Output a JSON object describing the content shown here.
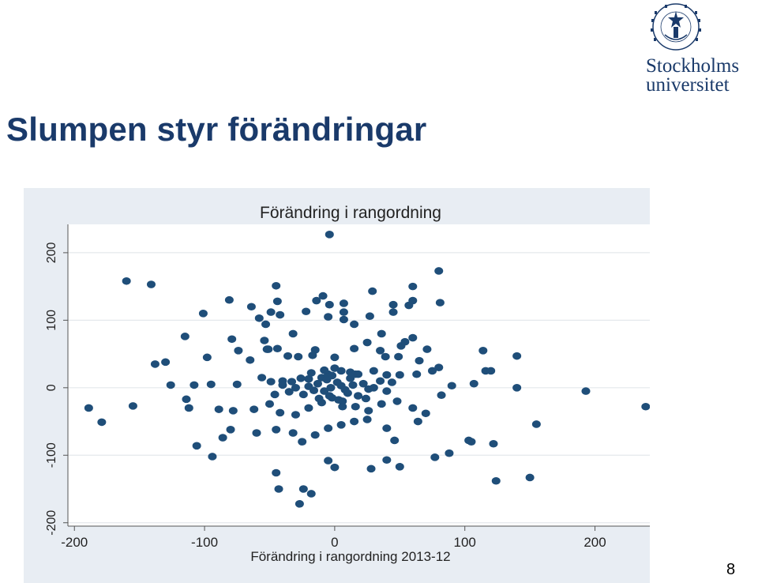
{
  "slide": {
    "title": "Slumpen styr förändringar",
    "page_number": "8"
  },
  "logo": {
    "line1": "Stockholms",
    "line2": "universitet",
    "seal_text": "UNIVERSITET STOCKHOLMS"
  },
  "colors": {
    "title": "#1a3a6a",
    "panel_bg": "#e8edf3",
    "plot_bg": "#ffffff",
    "marker": "#1f4e79",
    "grid": "#e4e8ec"
  },
  "chart_data": {
    "type": "scatter",
    "title": "Förändring i rangordning",
    "xlabel": "Förändring i rangordning 2013-12",
    "ylabel": "",
    "xlim": [
      -205,
      247
    ],
    "ylim": [
      -205,
      242
    ],
    "xticks": [
      -200,
      -100,
      0,
      100,
      200
    ],
    "xtick_labels": [
      "-200",
      "-100",
      "0",
      "100",
      "200"
    ],
    "yticks": [
      -200,
      -100,
      0,
      100,
      200
    ],
    "ytick_labels": [
      "-200",
      "-100",
      "0",
      "100",
      "200"
    ],
    "grid": "horizontal",
    "legend": "none",
    "points": [
      [
        -4,
        227
      ],
      [
        -160,
        158
      ],
      [
        -141,
        153
      ],
      [
        -45,
        151
      ],
      [
        80,
        173
      ],
      [
        60,
        150
      ],
      [
        29,
        143
      ],
      [
        -9,
        136
      ],
      [
        -4,
        123
      ],
      [
        7,
        125
      ],
      [
        45,
        123
      ],
      [
        81,
        126
      ],
      [
        -81,
        130
      ],
      [
        -64,
        120
      ],
      [
        -44,
        128
      ],
      [
        -22,
        113
      ],
      [
        -14,
        129
      ],
      [
        -49,
        112
      ],
      [
        7,
        112
      ],
      [
        27,
        106
      ],
      [
        45,
        112
      ],
      [
        -101,
        110
      ],
      [
        -58,
        103
      ],
      [
        -42,
        108
      ],
      [
        -53,
        94
      ],
      [
        -5,
        105
      ],
      [
        7,
        101
      ],
      [
        15,
        94
      ],
      [
        57,
        122
      ],
      [
        60,
        129
      ],
      [
        -115,
        76
      ],
      [
        -79,
        72
      ],
      [
        -32,
        80
      ],
      [
        36,
        80
      ],
      [
        -54,
        70
      ],
      [
        25,
        67
      ],
      [
        51,
        62
      ],
      [
        54,
        68
      ],
      [
        60,
        74
      ],
      [
        -74,
        55
      ],
      [
        -51,
        57
      ],
      [
        -44,
        58
      ],
      [
        -15,
        56
      ],
      [
        15,
        58
      ],
      [
        35,
        55
      ],
      [
        71,
        57
      ],
      [
        114,
        55
      ],
      [
        -138,
        35
      ],
      [
        -130,
        38
      ],
      [
        -98,
        45
      ],
      [
        -65,
        41
      ],
      [
        -52,
        57
      ],
      [
        -36,
        47
      ],
      [
        -28,
        46
      ],
      [
        -17,
        48
      ],
      [
        0,
        45
      ],
      [
        39,
        46
      ],
      [
        49,
        46
      ],
      [
        65,
        40
      ],
      [
        80,
        30
      ],
      [
        116,
        25
      ],
      [
        120,
        25
      ],
      [
        140,
        47
      ],
      [
        -126,
        4
      ],
      [
        -108,
        4
      ],
      [
        -95,
        5
      ],
      [
        -75,
        5
      ],
      [
        -56,
        15
      ],
      [
        -49,
        9
      ],
      [
        -40,
        10
      ],
      [
        -33,
        9
      ],
      [
        -20,
        13
      ],
      [
        -10,
        15
      ],
      [
        -5,
        20
      ],
      [
        0,
        29
      ],
      [
        5,
        25
      ],
      [
        12,
        23
      ],
      [
        18,
        20
      ],
      [
        30,
        25
      ],
      [
        40,
        19
      ],
      [
        50,
        19
      ],
      [
        63,
        20
      ],
      [
        75,
        25
      ],
      [
        90,
        3
      ],
      [
        107,
        6
      ],
      [
        140,
        0
      ],
      [
        -189,
        -30
      ],
      [
        -179,
        -51
      ],
      [
        -155,
        -27
      ],
      [
        -114,
        -17
      ],
      [
        -112,
        -30
      ],
      [
        -89,
        -32
      ],
      [
        -78,
        -34
      ],
      [
        -62,
        -32
      ],
      [
        -50,
        -24
      ],
      [
        -42,
        -37
      ],
      [
        -30,
        -40
      ],
      [
        -20,
        -30
      ],
      [
        -10,
        -22
      ],
      [
        -2,
        -15
      ],
      [
        6,
        -20
      ],
      [
        16,
        -28
      ],
      [
        26,
        -34
      ],
      [
        36,
        -24
      ],
      [
        48,
        -20
      ],
      [
        60,
        -30
      ],
      [
        70,
        -38
      ],
      [
        82,
        -11
      ],
      [
        193,
        -5
      ],
      [
        239,
        -28
      ],
      [
        -106,
        -86
      ],
      [
        -94,
        -102
      ],
      [
        -86,
        -74
      ],
      [
        -80,
        -62
      ],
      [
        -60,
        -67
      ],
      [
        -45,
        -62
      ],
      [
        -32,
        -67
      ],
      [
        -25,
        -80
      ],
      [
        -15,
        -70
      ],
      [
        -5,
        -60
      ],
      [
        5,
        -55
      ],
      [
        15,
        -50
      ],
      [
        25,
        -47
      ],
      [
        40,
        -60
      ],
      [
        46,
        -78
      ],
      [
        64,
        -50
      ],
      [
        77,
        -103
      ],
      [
        88,
        -97
      ],
      [
        103,
        -78
      ],
      [
        105,
        -80
      ],
      [
        122,
        -83
      ],
      [
        155,
        -54
      ],
      [
        -45,
        -126
      ],
      [
        -43,
        -150
      ],
      [
        -27,
        -172
      ],
      [
        -24,
        -150
      ],
      [
        -18,
        -157
      ],
      [
        -5,
        -108
      ],
      [
        0,
        -118
      ],
      [
        28,
        -120
      ],
      [
        40,
        -107
      ],
      [
        50,
        -117
      ],
      [
        124,
        -138
      ],
      [
        150,
        -133
      ],
      [
        -3,
        0
      ],
      [
        5,
        3
      ],
      [
        -8,
        -5
      ],
      [
        10,
        -8
      ],
      [
        -13,
        6
      ],
      [
        2,
        8
      ],
      [
        -6,
        12
      ],
      [
        8,
        -3
      ],
      [
        -4,
        -12
      ],
      [
        14,
        4
      ],
      [
        -16,
        -4
      ],
      [
        18,
        -12
      ],
      [
        -20,
        2
      ],
      [
        22,
        6
      ],
      [
        -24,
        -10
      ],
      [
        26,
        -2
      ],
      [
        3,
        -18
      ],
      [
        -2,
        18
      ],
      [
        12,
        14
      ],
      [
        -12,
        -16
      ],
      [
        30,
        0
      ],
      [
        -30,
        0
      ],
      [
        35,
        10
      ],
      [
        -35,
        -6
      ],
      [
        40,
        -5
      ],
      [
        -40,
        4
      ],
      [
        44,
        8
      ],
      [
        -46,
        -10
      ],
      [
        24,
        -16
      ],
      [
        -26,
        14
      ],
      [
        16,
        20
      ],
      [
        -18,
        22
      ],
      [
        6,
        -28
      ],
      [
        -8,
        26
      ]
    ]
  }
}
